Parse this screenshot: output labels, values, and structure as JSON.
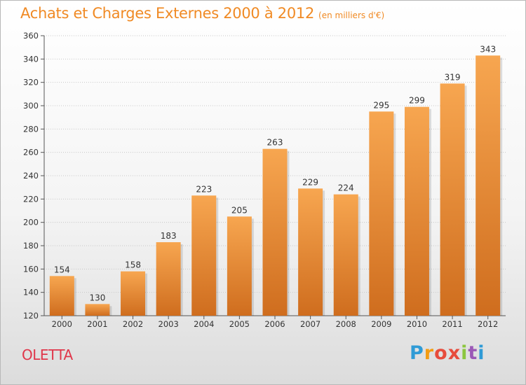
{
  "title": "Achats et Charges Externes 2000 à 2012",
  "subtitle": "(en milliers d'€)",
  "commune": "OLETTA",
  "logo": {
    "text": "Proxiti",
    "colors": [
      "#2f9bd6",
      "#f39c12",
      "#e74c3c",
      "#e74c3c",
      "#8cc63f",
      "#9b59b6",
      "#2f9bd6"
    ]
  },
  "colors": {
    "bar_top": "#f7a650",
    "bar_bottom": "#cf6d1e",
    "title": "#f08a24",
    "commune": "#e0364a"
  },
  "chart_data": {
    "type": "bar",
    "title": "Achats et Charges Externes 2000 à 2012",
    "xlabel": "",
    "ylabel": "",
    "categories": [
      "2000",
      "2001",
      "2002",
      "2003",
      "2004",
      "2005",
      "2006",
      "2007",
      "2008",
      "2009",
      "2010",
      "2011",
      "2012"
    ],
    "values": [
      154,
      130,
      158,
      183,
      223,
      205,
      263,
      229,
      224,
      295,
      299,
      319,
      343
    ],
    "ylim": [
      120,
      360
    ],
    "yticks": [
      120,
      140,
      160,
      180,
      200,
      220,
      240,
      260,
      280,
      300,
      320,
      340,
      360
    ],
    "grid": true,
    "data_labels": true
  }
}
